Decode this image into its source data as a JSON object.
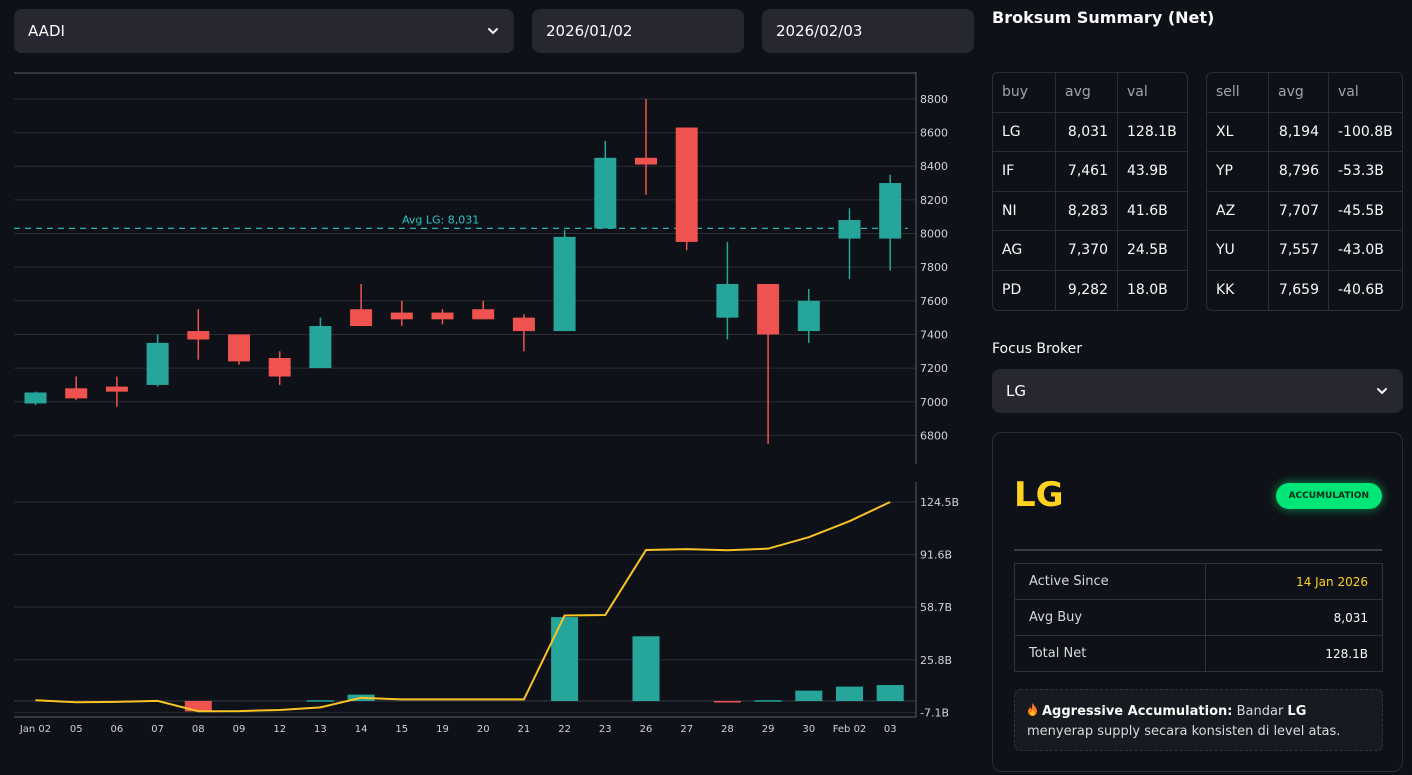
{
  "filters": {
    "ticker": "AADI",
    "start_date": "2026/01/02",
    "end_date": "2026/02/03"
  },
  "colors": {
    "up": "#26a69a",
    "down": "#ef5350",
    "avg_line": "#2ec4c4",
    "cum_line": "#f7c325",
    "accent": "#ffd21f",
    "badge": "#00e676"
  },
  "chart_data": [
    {
      "type": "candlestick",
      "categories": [
        "Jan 02",
        "05",
        "06",
        "07",
        "08",
        "09",
        "12",
        "13",
        "14",
        "15",
        "19",
        "20",
        "21",
        "22",
        "23",
        "26",
        "27",
        "28",
        "29",
        "30",
        "Feb 02",
        "03"
      ],
      "ohlc": [
        {
          "o": 6990,
          "h": 7060,
          "l": 6980,
          "c": 7055
        },
        {
          "o": 7080,
          "h": 7150,
          "l": 7010,
          "c": 7020
        },
        {
          "o": 7090,
          "h": 7150,
          "l": 6970,
          "c": 7060
        },
        {
          "o": 7100,
          "h": 7400,
          "l": 7090,
          "c": 7350
        },
        {
          "o": 7420,
          "h": 7550,
          "l": 7250,
          "c": 7370
        },
        {
          "o": 7400,
          "h": 7400,
          "l": 7220,
          "c": 7240
        },
        {
          "o": 7260,
          "h": 7300,
          "l": 7100,
          "c": 7150
        },
        {
          "o": 7200,
          "h": 7500,
          "l": 7200,
          "c": 7450
        },
        {
          "o": 7550,
          "h": 7700,
          "l": 7450,
          "c": 7450
        },
        {
          "o": 7530,
          "h": 7600,
          "l": 7450,
          "c": 7490
        },
        {
          "o": 7530,
          "h": 7550,
          "l": 7460,
          "c": 7490
        },
        {
          "o": 7550,
          "h": 7600,
          "l": 7490,
          "c": 7490
        },
        {
          "o": 7500,
          "h": 7520,
          "l": 7300,
          "c": 7420
        },
        {
          "o": 7420,
          "h": 8020,
          "l": 7420,
          "c": 7980
        },
        {
          "o": 8030,
          "h": 8550,
          "l": 8030,
          "c": 8450
        },
        {
          "o": 8450,
          "h": 8800,
          "l": 8230,
          "c": 8410
        },
        {
          "o": 8630,
          "h": 8630,
          "l": 7900,
          "c": 7950
        },
        {
          "o": 7500,
          "h": 7950,
          "l": 7370,
          "c": 7700
        },
        {
          "o": 7700,
          "h": 7700,
          "l": 6750,
          "c": 7400
        },
        {
          "o": 7420,
          "h": 7670,
          "l": 7350,
          "c": 7600
        },
        {
          "o": 7970,
          "h": 8150,
          "l": 7730,
          "c": 8080
        },
        {
          "o": 7970,
          "h": 8350,
          "l": 7780,
          "c": 8300
        }
      ],
      "y_ticks": [
        6800,
        7000,
        7200,
        7400,
        7600,
        7800,
        8000,
        8200,
        8400,
        8600,
        8800
      ],
      "ylim": [
        6630,
        8960
      ],
      "avg_line": {
        "label": "Avg LG: 8,031",
        "value": 8031
      }
    },
    {
      "type": "bar+line",
      "categories": [
        "Jan 02",
        "05",
        "06",
        "07",
        "08",
        "09",
        "12",
        "13",
        "14",
        "15",
        "19",
        "20",
        "21",
        "22",
        "23",
        "26",
        "27",
        "28",
        "29",
        "30",
        "Feb 02",
        "03"
      ],
      "bars_B": [
        0,
        0,
        0,
        0,
        -6.5,
        0,
        0,
        0.5,
        4,
        0,
        0,
        0,
        0,
        52.5,
        0,
        40.5,
        0,
        -0.3,
        0.5,
        6.5,
        9,
        10
      ],
      "cumulative_B": [
        0.5,
        -0.8,
        -0.5,
        0.1,
        -6.4,
        -6.3,
        -5.6,
        -4,
        2,
        1,
        1,
        1,
        1,
        53.5,
        53.8,
        94.5,
        95,
        94.3,
        95.3,
        102.5,
        112.5,
        124.5
      ],
      "y_ticks": [
        "-7.1B",
        "25.8B",
        "58.7B",
        "91.6B",
        "124.5B"
      ],
      "y_tick_values": [
        -7.1,
        25.8,
        58.7,
        91.6,
        124.5
      ],
      "ylim": [
        -10,
        137
      ]
    }
  ],
  "summary": {
    "title": "Broksum Summary (Net)",
    "buy_headers": [
      "buy",
      "avg",
      "val"
    ],
    "buy_rows": [
      [
        "LG",
        "8,031",
        "128.1B"
      ],
      [
        "IF",
        "7,461",
        "43.9B"
      ],
      [
        "NI",
        "8,283",
        "41.6B"
      ],
      [
        "AG",
        "7,370",
        "24.5B"
      ],
      [
        "PD",
        "9,282",
        "18.0B"
      ]
    ],
    "sell_headers": [
      "sell",
      "avg",
      "val"
    ],
    "sell_rows": [
      [
        "XL",
        "8,194",
        "-100.8B"
      ],
      [
        "YP",
        "8,796",
        "-53.3B"
      ],
      [
        "AZ",
        "7,707",
        "-45.5B"
      ],
      [
        "YU",
        "7,557",
        "-43.0B"
      ],
      [
        "KK",
        "7,659",
        "-40.6B"
      ]
    ]
  },
  "focus": {
    "label": "Focus Broker",
    "selected": "LG",
    "card": {
      "broker": "LG",
      "badge": "ACCUMULATION",
      "rows": [
        {
          "label": "Active Since",
          "value": "14 Jan 2026"
        },
        {
          "label": "Avg Buy",
          "value": "8,031"
        },
        {
          "label": "Total Net",
          "value": "128.1B"
        }
      ],
      "note_strong": "Aggressive Accumulation:",
      "note_pre": " Bandar ",
      "note_broker": "LG",
      "note_post": " menyerap supply secara konsisten di level atas."
    }
  }
}
